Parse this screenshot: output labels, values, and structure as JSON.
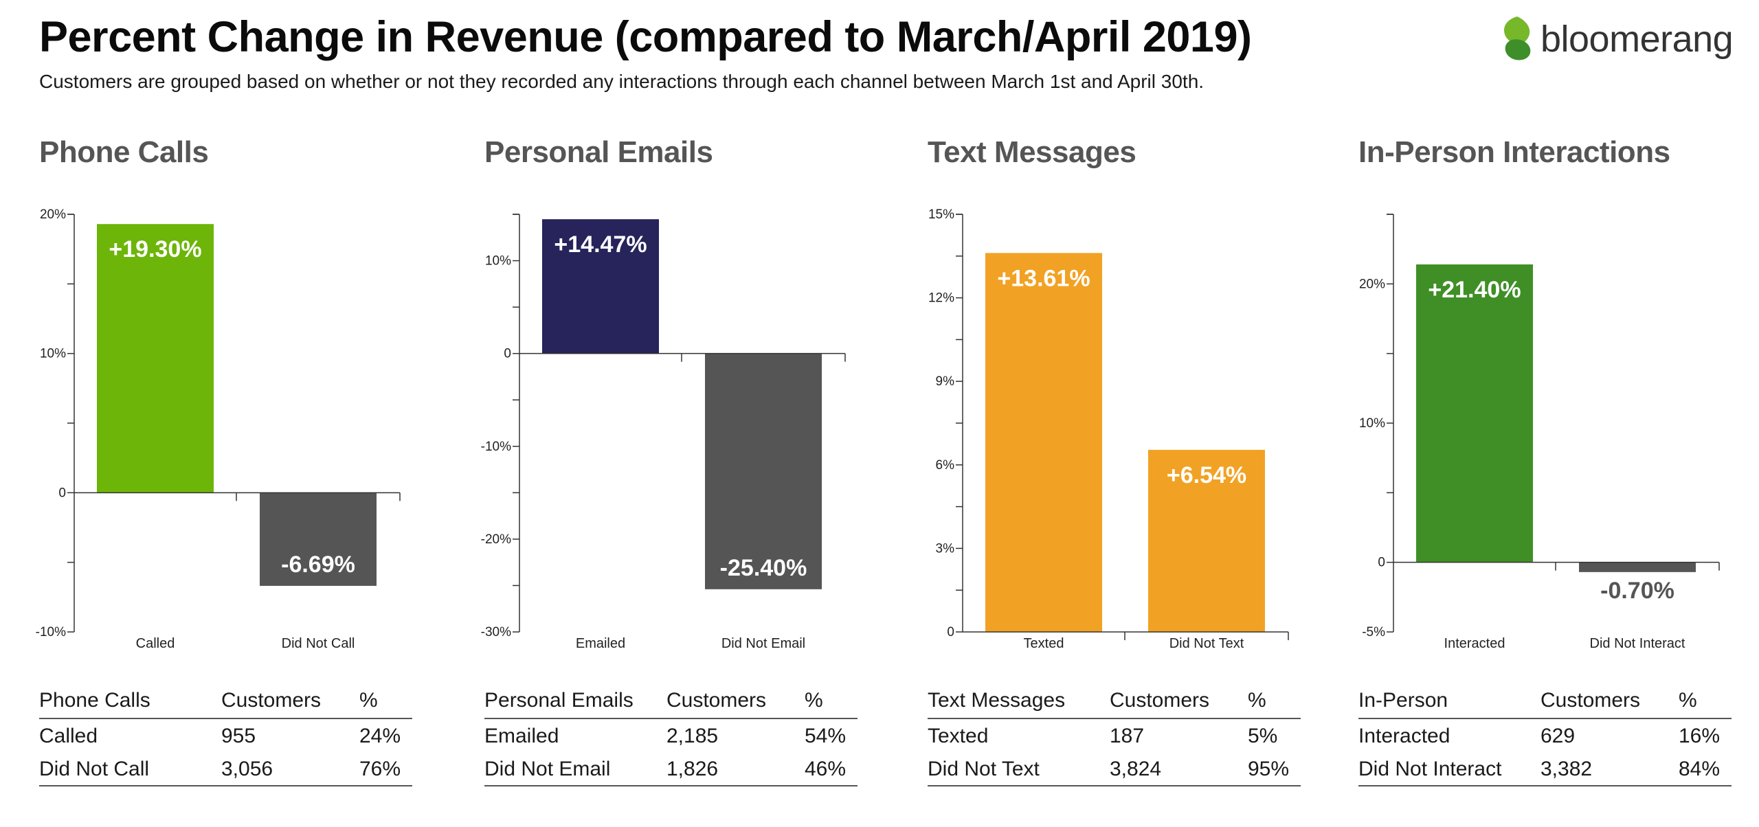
{
  "title": "Percent Change in Revenue (compared to March/April 2019)",
  "subtitle": "Customers are grouped based on whether or not they recorded any interactions through each channel between March 1st and April 30th.",
  "logo": {
    "text": "bloomerang",
    "icon": "leaf-logo-icon",
    "colors": [
      "#76b82a",
      "#3e8e2a"
    ]
  },
  "chart_data": [
    {
      "type": "bar",
      "title": "Phone Calls",
      "categories": [
        "Called",
        "Did Not Call"
      ],
      "values": [
        19.3,
        -6.69
      ],
      "value_labels": [
        "+19.30%",
        "-6.69%"
      ],
      "colors": [
        "#6db509",
        "#555555"
      ],
      "label_colors": [
        "#ffffff",
        "#ffffff"
      ],
      "ylim": [
        -10,
        20
      ],
      "ticks": [
        -10,
        0,
        10,
        20
      ],
      "tick_labels": [
        "-10%",
        "0",
        "10%",
        "20%"
      ],
      "minor_ticks": [
        -5,
        5,
        15
      ]
    },
    {
      "type": "bar",
      "title": "Personal Emails",
      "categories": [
        "Emailed",
        "Did Not Email"
      ],
      "values": [
        14.47,
        -25.4
      ],
      "value_labels": [
        "+14.47%",
        "-25.40%"
      ],
      "colors": [
        "#26245a",
        "#555555"
      ],
      "label_colors": [
        "#ffffff",
        "#ffffff"
      ],
      "ylim": [
        -30,
        15
      ],
      "ticks": [
        -30,
        -20,
        -10,
        0,
        10
      ],
      "tick_labels": [
        "-30%",
        "-20%",
        "-10%",
        "0",
        "10%"
      ],
      "minor_ticks": [
        -25,
        -15,
        -5,
        5,
        15
      ]
    },
    {
      "type": "bar",
      "title": "Text Messages",
      "categories": [
        "Texted",
        "Did Not Text"
      ],
      "values": [
        13.61,
        6.54
      ],
      "value_labels": [
        "+13.61%",
        "+6.54%"
      ],
      "colors": [
        "#f1a224",
        "#f1a224"
      ],
      "label_colors": [
        "#ffffff",
        "#ffffff"
      ],
      "ylim": [
        0,
        15
      ],
      "ticks": [
        0,
        3,
        6,
        9,
        12,
        15
      ],
      "tick_labels": [
        "0",
        "3%",
        "6%",
        "9%",
        "12%",
        "15%"
      ],
      "minor_ticks": [
        1.5,
        4.5,
        7.5,
        10.5,
        13.5
      ]
    },
    {
      "type": "bar",
      "title": "In-Person Interactions",
      "categories": [
        "Interacted",
        "Did Not Interact"
      ],
      "values": [
        21.4,
        -0.7
      ],
      "value_labels": [
        "+21.40%",
        "-0.70%"
      ],
      "colors": [
        "#3f8f26",
        "#555555"
      ],
      "label_colors": [
        "#ffffff",
        "#555555"
      ],
      "ylim": [
        -5,
        25
      ],
      "ticks": [
        -5,
        0,
        10,
        20
      ],
      "tick_labels": [
        "-5%",
        "0",
        "10%",
        "20%"
      ],
      "minor_ticks": [
        5,
        15,
        25
      ]
    }
  ],
  "tables": [
    {
      "header": [
        "Phone Calls",
        "Customers",
        "%"
      ],
      "rows": [
        [
          "Called",
          "955",
          "24%"
        ],
        [
          "Did Not Call",
          "3,056",
          "76%"
        ]
      ]
    },
    {
      "header": [
        "Personal Emails",
        "Customers",
        "%"
      ],
      "rows": [
        [
          "Emailed",
          "2,185",
          "54%"
        ],
        [
          "Did Not Email",
          "1,826",
          "46%"
        ]
      ]
    },
    {
      "header": [
        "Text Messages",
        "Customers",
        "%"
      ],
      "rows": [
        [
          "Texted",
          "187",
          "5%"
        ],
        [
          "Did Not Text",
          "3,824",
          "95%"
        ]
      ]
    },
    {
      "header": [
        "In-Person",
        "Customers",
        "%"
      ],
      "rows": [
        [
          "Interacted",
          "629",
          "16%"
        ],
        [
          "Did Not Interact",
          "3,382",
          "84%"
        ]
      ]
    }
  ]
}
